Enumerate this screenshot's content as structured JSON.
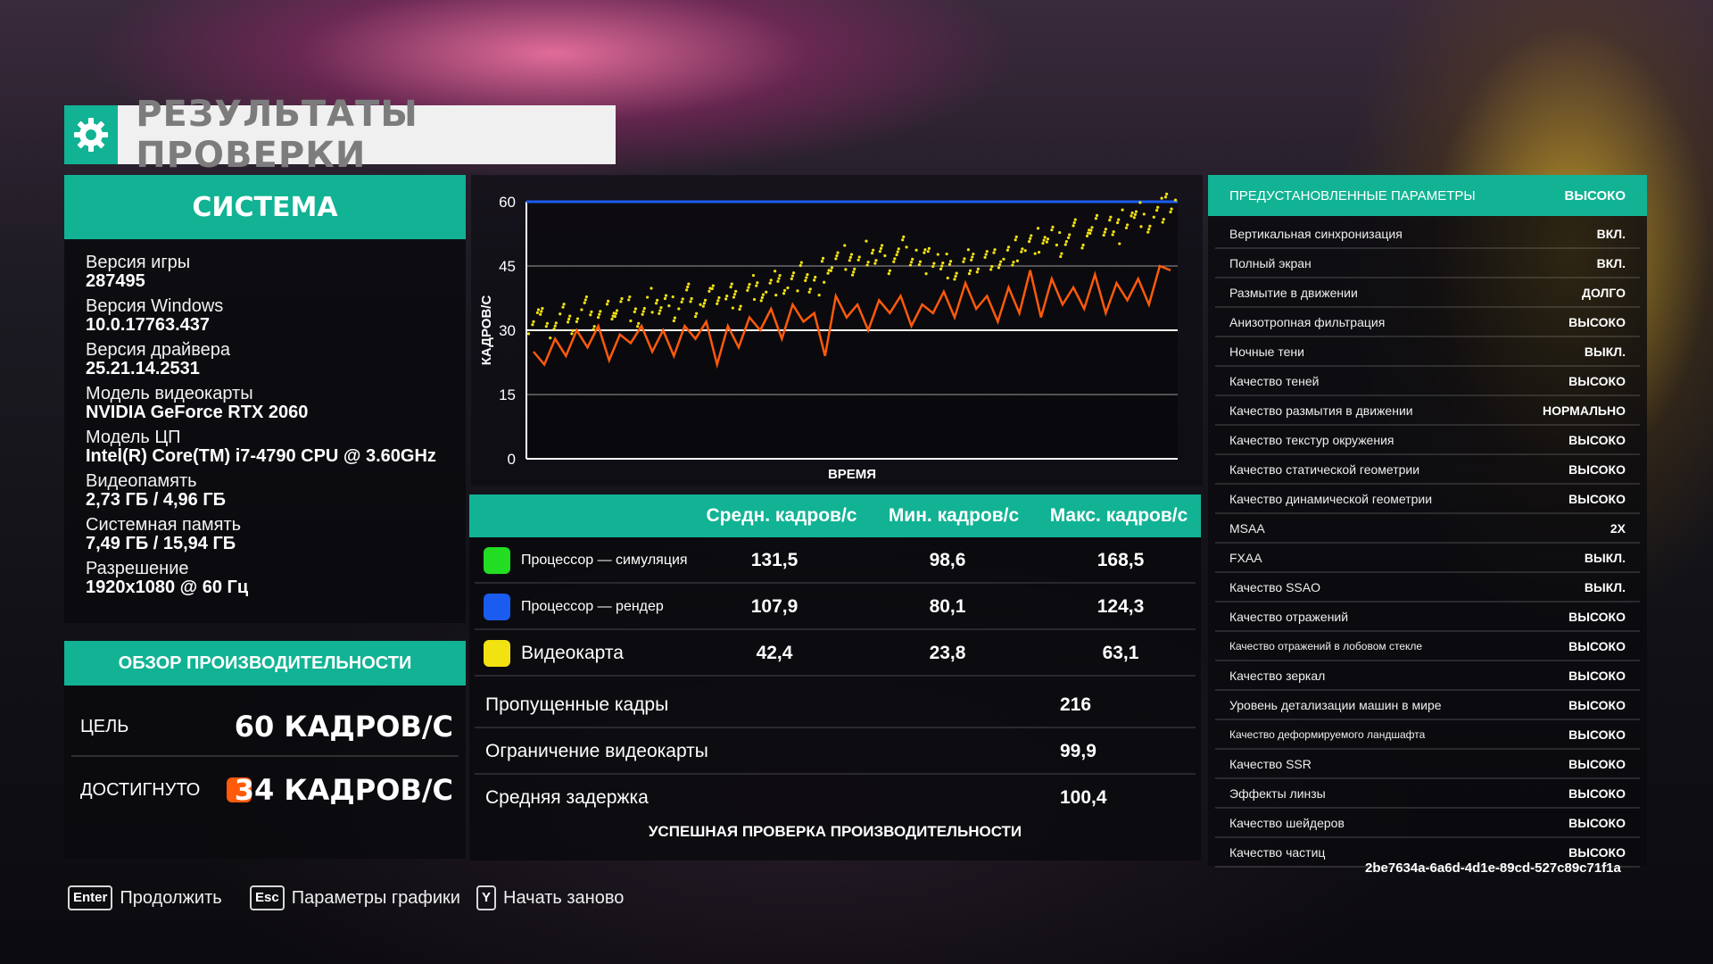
{
  "title": "РЕЗУЛЬТАТЫ ПРОВЕРКИ",
  "colors": {
    "accent": "#11b394",
    "cpu_sim": "#22dd22",
    "cpu_render": "#1a5cf0",
    "gpu": "#f2e211",
    "achieved": "#ff5a0a"
  },
  "system": {
    "title": "СИСТЕМА",
    "items": [
      {
        "label": "Версия игры",
        "value": "287495"
      },
      {
        "label": "Версия Windows",
        "value": "10.0.17763.437"
      },
      {
        "label": "Версия драйвера",
        "value": "25.21.14.2531"
      },
      {
        "label": "Модель видеокарты",
        "value": "NVIDIA GeForce RTX 2060"
      },
      {
        "label": "Модель ЦП",
        "value": "Intel(R) Core(TM) i7-4790 CPU @ 3.60GHz"
      },
      {
        "label": "Видеопамять",
        "value": "2,73 ГБ / 4,96 ГБ"
      },
      {
        "label": "Системная память",
        "value": "7,49 ГБ / 15,94 ГБ"
      },
      {
        "label": "Разрешение",
        "value": "1920x1080 @ 60 Гц"
      }
    ]
  },
  "overview": {
    "title": "ОБЗОР ПРОИЗВОДИТЕЛЬНОСТИ",
    "target_label": "ЦЕЛЬ",
    "target_value": "60 КАДРОВ/С",
    "achieved_label": "ДОСТИГНУТО",
    "achieved_value": "34 КАДРОВ/С"
  },
  "chart_data": {
    "type": "scatter",
    "ylabel": "КАДРОВ/С",
    "xlabel": "ВРЕМЯ",
    "yticks": [
      0,
      15,
      30,
      45,
      60
    ],
    "ylim": [
      0,
      60
    ],
    "target_fps": 60,
    "grid": true,
    "series": [
      {
        "name": "Процессор — рендер",
        "role": "target-line",
        "color": "#1a5cf0",
        "values": [
          60,
          60
        ]
      },
      {
        "name": "Видеокарта",
        "role": "scatter",
        "color": "#f2e211",
        "values": [
          32,
          33,
          31,
          34,
          32,
          35,
          33,
          34,
          36,
          35,
          33,
          37,
          36,
          35,
          38,
          36,
          37,
          39,
          38,
          37,
          40,
          39,
          41,
          40,
          42,
          43,
          41,
          44,
          46,
          47,
          45,
          48,
          47,
          46,
          49,
          48,
          46,
          47,
          45,
          44,
          46,
          45,
          47,
          46,
          48,
          49,
          50,
          51,
          52,
          50,
          53,
          52,
          54,
          55,
          53,
          56,
          57,
          55,
          58,
          59
        ]
      },
      {
        "name": "Средн. кадров/с",
        "role": "line",
        "color": "#ff5a0a",
        "values": [
          25,
          22,
          28,
          24,
          30,
          26,
          31,
          23,
          29,
          27,
          31,
          25,
          30,
          24,
          31,
          28,
          32,
          22,
          31,
          26,
          33,
          30,
          35,
          28,
          36,
          32,
          34,
          24,
          38,
          33,
          36,
          30,
          37,
          34,
          38,
          31,
          36,
          34,
          39,
          33,
          41,
          35,
          38,
          32,
          40,
          34,
          44,
          33,
          42,
          36,
          40,
          35,
          43,
          34,
          41,
          37,
          42,
          36,
          45,
          44
        ]
      }
    ]
  },
  "stats": {
    "columns": [
      "Средн. кадров/с",
      "Мин. кадров/с",
      "Макс. кадров/с"
    ],
    "rows": [
      {
        "name": "Процессор — симуляция",
        "avg": "131,5",
        "min": "98,6",
        "max": "168,5"
      },
      {
        "name": "Процессор — рендер",
        "avg": "107,9",
        "min": "80,1",
        "max": "124,3"
      },
      {
        "name": "Видеокарта",
        "avg": "42,4",
        "min": "23,8",
        "max": "63,1"
      }
    ],
    "extra": [
      {
        "name": "Пропущенные кадры",
        "value": "216"
      },
      {
        "name": "Ограничение видеокарты",
        "value": "99,9"
      },
      {
        "name": "Средняя задержка",
        "value": "100,4"
      }
    ],
    "success": "УСПЕШНАЯ ПРОВЕРКА ПРОИЗВОДИТЕЛЬНОСТИ"
  },
  "settings": {
    "header_label": "ПРЕДУСТАНОВЛЕННЫЕ ПАРАМЕТРЫ",
    "header_value": "ВЫСОКО",
    "items": [
      {
        "name": "Вертикальная синхронизация",
        "value": "ВКЛ."
      },
      {
        "name": "Полный экран",
        "value": "ВКЛ."
      },
      {
        "name": "Размытие в движении",
        "value": "ДОЛГО"
      },
      {
        "name": "Анизотропная фильтрация",
        "value": "ВЫСОКО"
      },
      {
        "name": "Ночные тени",
        "value": "ВЫКЛ."
      },
      {
        "name": "Качество теней",
        "value": "ВЫСОКО"
      },
      {
        "name": "Качество размытия в движении",
        "value": "НОРМАЛЬНО"
      },
      {
        "name": "Качество текстур окружения",
        "value": "ВЫСОКО"
      },
      {
        "name": "Качество статической геометрии",
        "value": "ВЫСОКО"
      },
      {
        "name": "Качество динамической геометрии",
        "value": "ВЫСОКО"
      },
      {
        "name": "MSAA",
        "value": "2X"
      },
      {
        "name": "FXAA",
        "value": "ВЫКЛ."
      },
      {
        "name": "Качество SSAO",
        "value": "ВЫКЛ."
      },
      {
        "name": "Качество отражений",
        "value": "ВЫСОКО"
      },
      {
        "name": "Качество отражений в лобовом стекле",
        "value": "ВЫСОКО",
        "small": true
      },
      {
        "name": "Качество зеркал",
        "value": "ВЫСОКО"
      },
      {
        "name": "Уровень детализации машин в мире",
        "value": "ВЫСОКО"
      },
      {
        "name": "Качество деформируемого ландшафта",
        "value": "ВЫСОКО",
        "small": true
      },
      {
        "name": "Качество SSR",
        "value": "ВЫСОКО"
      },
      {
        "name": "Эффекты линзы",
        "value": "ВЫСОКО"
      },
      {
        "name": "Качество шейдеров",
        "value": "ВЫСОКО"
      },
      {
        "name": "Качество частиц",
        "value": "ВЫСОКО"
      }
    ]
  },
  "session_id": "2be7634a-6a6d-4d1e-89cd-527c89c71f1a",
  "footer": [
    {
      "key": "Enter",
      "label": "Продолжить"
    },
    {
      "key": "Esc",
      "label": "Параметры графики"
    },
    {
      "key": "Y",
      "label": "Начать заново"
    }
  ]
}
